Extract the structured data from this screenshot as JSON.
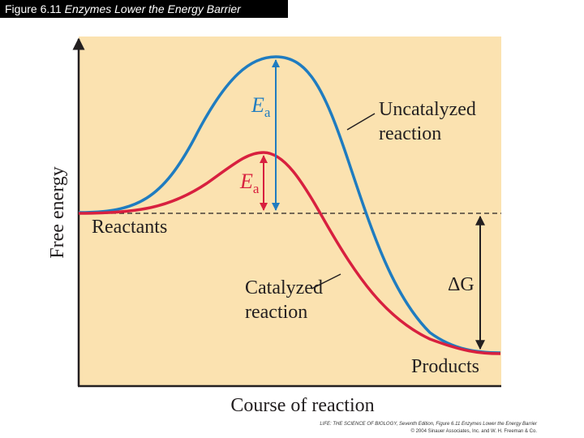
{
  "header": {
    "figure": "Figure 6.11",
    "title": "Enzymes Lower the Energy Barrier"
  },
  "axes": {
    "y_label": "Free energy",
    "x_label": "Course of reaction"
  },
  "labels": {
    "uncatalyzed_ea": {
      "symbol": "E",
      "subscript": "a"
    },
    "catalyzed_ea": {
      "symbol": "E",
      "subscript": "a"
    },
    "uncatalyzed": [
      "Uncatalyzed",
      "reaction"
    ],
    "reactants": "Reactants",
    "catalyzed": [
      "Catalyzed",
      "reaction"
    ],
    "delta_g": "ΔG",
    "products": "Products"
  },
  "credit": [
    "LIFE: THE SCIENCE OF BIOLOGY, Seventh Edition, Figure 6.11 Enzymes Lower the Energy Barrier",
    "© 2004 Sinauer Associates, Inc. and W. H. Freeman & Co."
  ]
}
